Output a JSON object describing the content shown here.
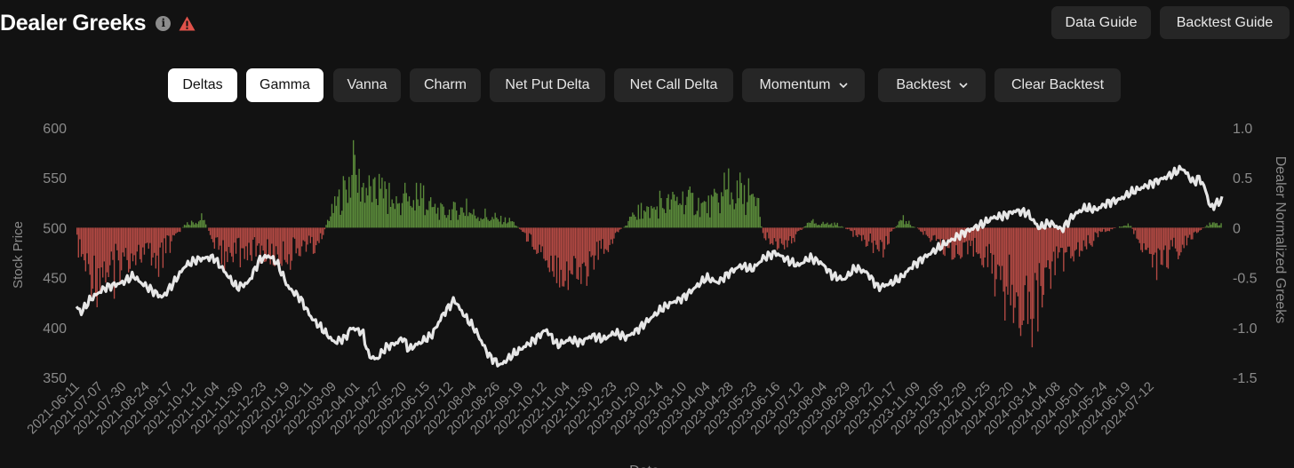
{
  "header": {
    "title": "Dealer Greeks",
    "info_icon_glyph": "i",
    "data_guide_label": "Data Guide",
    "backtest_guide_label": "Backtest Guide"
  },
  "toolbar": {
    "deltas": "Deltas",
    "gamma": "Gamma",
    "vanna": "Vanna",
    "charm": "Charm",
    "net_put_delta": "Net Put Delta",
    "net_call_delta": "Net Call Delta",
    "momentum": "Momentum",
    "backtest": "Backtest",
    "clear_backtest": "Clear Backtest"
  },
  "colors": {
    "background": "#121212",
    "positive_bar": "#5a8a3a",
    "negative_bar": "#b44a44",
    "price_line": "#f2f2f2",
    "axis_text": "#8a8a8a"
  },
  "chart_data": {
    "type": "bar+line",
    "title": "Dealer Greeks",
    "xlabel": "Date",
    "ylabel_left": "Stock Price",
    "ylabel_right": "Dealer Normalized Greeks",
    "ylim_left": [
      350,
      600
    ],
    "ylim_right": [
      -1.5,
      1.0
    ],
    "left_ticks": [
      "600",
      "550",
      "500",
      "450",
      "400",
      "350"
    ],
    "right_ticks": [
      "1.0",
      "0.5",
      "0",
      "-0.5",
      "-1.0",
      "-1.5"
    ],
    "dates": [
      "2021-06-11",
      "2021-07-07",
      "2021-07-30",
      "2021-08-24",
      "2021-09-17",
      "2021-10-12",
      "2021-11-04",
      "2021-11-30",
      "2021-12-23",
      "2022-01-19",
      "2022-02-11",
      "2022-03-09",
      "2022-04-01",
      "2022-04-27",
      "2022-05-20",
      "2022-06-15",
      "2022-07-12",
      "2022-08-04",
      "2022-08-26",
      "2022-09-19",
      "2022-10-12",
      "2022-11-04",
      "2022-11-30",
      "2022-12-23",
      "2023-01-20",
      "2023-02-14",
      "2023-03-10",
      "2023-04-04",
      "2023-04-28",
      "2023-05-23",
      "2023-06-16",
      "2023-07-12",
      "2023-08-04",
      "2023-08-29",
      "2023-09-22",
      "2023-10-17",
      "2023-11-09",
      "2023-12-05",
      "2023-12-29",
      "2024-01-25",
      "2024-02-20",
      "2024-03-14",
      "2024-04-08",
      "2024-05-01",
      "2024-05-24",
      "2024-06-19",
      "2024-07-12"
    ],
    "greek_profile": [
      [
        0,
        -0.2
      ],
      [
        0.01,
        -0.55
      ],
      [
        0.03,
        -0.5
      ],
      [
        0.05,
        -0.3
      ],
      [
        0.07,
        -0.35
      ],
      [
        0.095,
        0.05
      ],
      [
        0.11,
        0.1
      ],
      [
        0.125,
        -0.3
      ],
      [
        0.15,
        -0.25
      ],
      [
        0.175,
        -0.35
      ],
      [
        0.2,
        -0.2
      ],
      [
        0.213,
        -0.15
      ],
      [
        0.22,
        0.12
      ],
      [
        0.24,
        0.6
      ],
      [
        0.27,
        0.3
      ],
      [
        0.3,
        0.3
      ],
      [
        0.32,
        0.18
      ],
      [
        0.335,
        0.22
      ],
      [
        0.35,
        0.15
      ],
      [
        0.365,
        0.1
      ],
      [
        0.38,
        0.08
      ],
      [
        0.395,
        -0.12
      ],
      [
        0.415,
        -0.4
      ],
      [
        0.43,
        -0.55
      ],
      [
        0.445,
        -0.5
      ],
      [
        0.455,
        -0.3
      ],
      [
        0.472,
        -0.05
      ],
      [
        0.49,
        0.15
      ],
      [
        0.51,
        0.25
      ],
      [
        0.53,
        0.35
      ],
      [
        0.55,
        0.25
      ],
      [
        0.57,
        0.4
      ],
      [
        0.585,
        0.35
      ],
      [
        0.595,
        0.25
      ],
      [
        0.6,
        -0.1
      ],
      [
        0.615,
        -0.2
      ],
      [
        0.625,
        -0.12
      ],
      [
        0.64,
        0.06
      ],
      [
        0.665,
        0.04
      ],
      [
        0.69,
        -0.15
      ],
      [
        0.705,
        -0.2
      ],
      [
        0.72,
        0.1
      ],
      [
        0.74,
        -0.05
      ],
      [
        0.76,
        -0.2
      ],
      [
        0.775,
        -0.4
      ],
      [
        0.785,
        -0.2
      ],
      [
        0.805,
        -0.5
      ],
      [
        0.82,
        -0.8
      ],
      [
        0.835,
        -1.05
      ],
      [
        0.845,
        -0.6
      ],
      [
        0.86,
        -0.3
      ],
      [
        0.875,
        -0.25
      ],
      [
        0.895,
        -0.05
      ],
      [
        0.92,
        0.04
      ],
      [
        0.935,
        -0.3
      ],
      [
        0.945,
        -0.45
      ],
      [
        0.955,
        -0.3
      ],
      [
        0.97,
        -0.2
      ],
      [
        0.98,
        -0.05
      ],
      [
        0.99,
        0.04
      ],
      [
        1,
        0.05
      ]
    ],
    "price_series": [
      [
        0,
        421
      ],
      [
        0.004,
        415
      ],
      [
        0.012,
        428
      ],
      [
        0.025,
        440
      ],
      [
        0.04,
        445
      ],
      [
        0.05,
        452
      ],
      [
        0.055,
        446
      ],
      [
        0.065,
        438
      ],
      [
        0.075,
        430
      ],
      [
        0.085,
        445
      ],
      [
        0.095,
        462
      ],
      [
        0.105,
        468
      ],
      [
        0.115,
        470
      ],
      [
        0.12,
        470
      ],
      [
        0.13,
        455
      ],
      [
        0.14,
        440
      ],
      [
        0.15,
        445
      ],
      [
        0.16,
        468
      ],
      [
        0.168,
        472
      ],
      [
        0.175,
        465
      ],
      [
        0.185,
        440
      ],
      [
        0.195,
        430
      ],
      [
        0.205,
        410
      ],
      [
        0.215,
        398
      ],
      [
        0.225,
        385
      ],
      [
        0.235,
        390
      ],
      [
        0.24,
        400
      ],
      [
        0.25,
        395
      ],
      [
        0.255,
        372
      ],
      [
        0.262,
        368
      ],
      [
        0.27,
        380
      ],
      [
        0.28,
        385
      ],
      [
        0.285,
        390
      ],
      [
        0.29,
        378
      ],
      [
        0.3,
        385
      ],
      [
        0.31,
        392
      ],
      [
        0.32,
        413
      ],
      [
        0.33,
        428
      ],
      [
        0.335,
        418
      ],
      [
        0.34,
        410
      ],
      [
        0.348,
        398
      ],
      [
        0.36,
        372
      ],
      [
        0.37,
        362
      ],
      [
        0.38,
        372
      ],
      [
        0.39,
        380
      ],
      [
        0.4,
        388
      ],
      [
        0.41,
        398
      ],
      [
        0.42,
        382
      ],
      [
        0.43,
        388
      ],
      [
        0.44,
        385
      ],
      [
        0.45,
        392
      ],
      [
        0.46,
        388
      ],
      [
        0.47,
        395
      ],
      [
        0.48,
        390
      ],
      [
        0.49,
        398
      ],
      [
        0.5,
        408
      ],
      [
        0.51,
        418
      ],
      [
        0.52,
        425
      ],
      [
        0.53,
        430
      ],
      [
        0.54,
        440
      ],
      [
        0.55,
        450
      ],
      [
        0.56,
        445
      ],
      [
        0.57,
        455
      ],
      [
        0.58,
        462
      ],
      [
        0.59,
        458
      ],
      [
        0.6,
        470
      ],
      [
        0.61,
        475
      ],
      [
        0.62,
        468
      ],
      [
        0.63,
        462
      ],
      [
        0.64,
        470
      ],
      [
        0.65,
        465
      ],
      [
        0.66,
        452
      ],
      [
        0.67,
        448
      ],
      [
        0.68,
        460
      ],
      [
        0.69,
        455
      ],
      [
        0.7,
        440
      ],
      [
        0.705,
        442
      ],
      [
        0.712,
        445
      ],
      [
        0.72,
        450
      ],
      [
        0.73,
        462
      ],
      [
        0.74,
        470
      ],
      [
        0.75,
        478
      ],
      [
        0.76,
        485
      ],
      [
        0.77,
        492
      ],
      [
        0.78,
        498
      ],
      [
        0.79,
        503
      ],
      [
        0.8,
        510
      ],
      [
        0.81,
        512
      ],
      [
        0.82,
        517
      ],
      [
        0.83,
        515
      ],
      [
        0.84,
        500
      ],
      [
        0.85,
        505
      ],
      [
        0.86,
        498
      ],
      [
        0.87,
        512
      ],
      [
        0.88,
        520
      ],
      [
        0.89,
        518
      ],
      [
        0.9,
        525
      ],
      [
        0.91,
        528
      ],
      [
        0.92,
        535
      ],
      [
        0.93,
        540
      ],
      [
        0.94,
        545
      ],
      [
        0.95,
        550
      ],
      [
        0.96,
        556
      ],
      [
        0.965,
        560
      ],
      [
        0.97,
        553
      ],
      [
        0.975,
        545
      ],
      [
        0.98,
        550
      ],
      [
        0.985,
        540
      ],
      [
        0.99,
        520
      ],
      [
        1,
        528
      ]
    ]
  }
}
